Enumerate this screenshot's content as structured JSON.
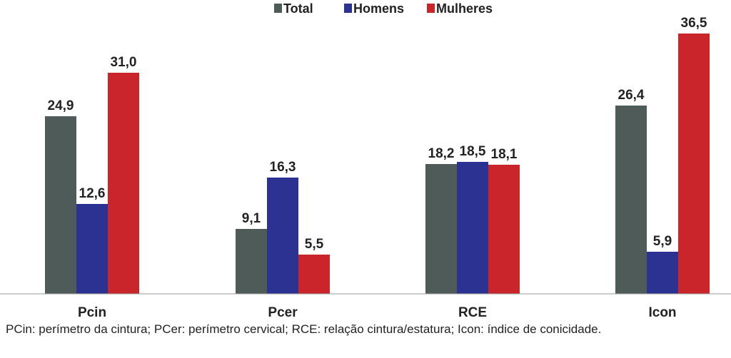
{
  "chart_data": {
    "type": "bar",
    "categories": [
      "Pcin",
      "Pcer",
      "RCE",
      "Icon"
    ],
    "series": [
      {
        "name": "Total",
        "values": [
          24.9,
          9.1,
          18.2,
          26.4
        ],
        "labels": [
          "24,9",
          "9,1",
          "18,2",
          "26,4"
        ],
        "color": "#4f5b58"
      },
      {
        "name": "Homens",
        "values": [
          12.6,
          16.3,
          18.5,
          5.9
        ],
        "labels": [
          "12,6",
          "16,3",
          "18,5",
          "5,9"
        ],
        "color": "#2b3291"
      },
      {
        "name": "Mulheres",
        "values": [
          31.0,
          5.5,
          18.1,
          36.5
        ],
        "labels": [
          "31,0",
          "5,5",
          "18,1",
          "36,5"
        ],
        "color": "#c9252b"
      }
    ],
    "ylim": [
      0,
      40
    ],
    "grid": false,
    "legend_position": "top-center"
  },
  "footnote": "PCin: perímetro da cintura; PCer: perímetro cervical; RCE: relação cintura/estatura; Icon: índice de conicidade."
}
